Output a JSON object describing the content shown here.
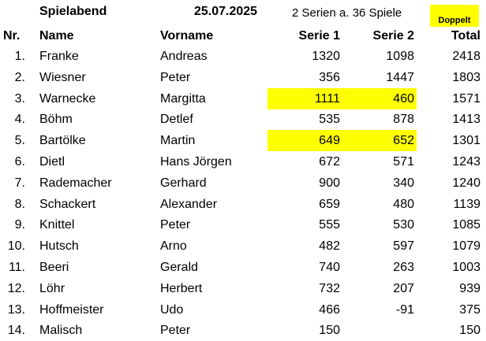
{
  "header": {
    "title": "Spielabend",
    "date": "25.07.2025",
    "series_info": "2 Serien a. 36 Spiele",
    "badge": "Doppelt"
  },
  "columns": {
    "nr": "Nr.",
    "name": "Name",
    "vorname": "Vorname",
    "serie1": "Serie 1",
    "serie2": "Serie 2",
    "total": "Total"
  },
  "highlight_color": "#ffff00",
  "rows": [
    {
      "nr": "1.",
      "name": "Franke",
      "vorname": "Andreas",
      "s1": "1320",
      "s2": "1098",
      "total": "2418",
      "highlight": false
    },
    {
      "nr": "2.",
      "name": "Wiesner",
      "vorname": "Peter",
      "s1": "356",
      "s2": "1447",
      "total": "1803",
      "highlight": false
    },
    {
      "nr": "3.",
      "name": "Warnecke",
      "vorname": "Margitta",
      "s1": "1111",
      "s2": "460",
      "total": "1571",
      "highlight": true
    },
    {
      "nr": "4.",
      "name": "Böhm",
      "vorname": "Detlef",
      "s1": "535",
      "s2": "878",
      "total": "1413",
      "highlight": false
    },
    {
      "nr": "5.",
      "name": "Bartölke",
      "vorname": "Martin",
      "s1": "649",
      "s2": "652",
      "total": "1301",
      "highlight": true
    },
    {
      "nr": "6.",
      "name": "Dietl",
      "vorname": "Hans Jörgen",
      "s1": "672",
      "s2": "571",
      "total": "1243",
      "highlight": false
    },
    {
      "nr": "7.",
      "name": "Rademacher",
      "vorname": "Gerhard",
      "s1": "900",
      "s2": "340",
      "total": "1240",
      "highlight": false
    },
    {
      "nr": "8.",
      "name": "Schackert",
      "vorname": "Alexander",
      "s1": "659",
      "s2": "480",
      "total": "1139",
      "highlight": false
    },
    {
      "nr": "9.",
      "name": "Knittel",
      "vorname": "Peter",
      "s1": "555",
      "s2": "530",
      "total": "1085",
      "highlight": false
    },
    {
      "nr": "10.",
      "name": "Hutsch",
      "vorname": "Arno",
      "s1": "482",
      "s2": "597",
      "total": "1079",
      "highlight": false
    },
    {
      "nr": "11.",
      "name": "Beeri",
      "vorname": "Gerald",
      "s1": "740",
      "s2": "263",
      "total": "1003",
      "highlight": false
    },
    {
      "nr": "12.",
      "name": "Löhr",
      "vorname": "Herbert",
      "s1": "732",
      "s2": "207",
      "total": "939",
      "highlight": false
    },
    {
      "nr": "13.",
      "name": "Hoffmeister",
      "vorname": "Udo",
      "s1": "466",
      "s2": "-91",
      "total": "375",
      "highlight": false
    },
    {
      "nr": "14.",
      "name": "Malisch",
      "vorname": "Peter",
      "s1": "150",
      "s2": "",
      "total": "150",
      "highlight": false
    }
  ]
}
